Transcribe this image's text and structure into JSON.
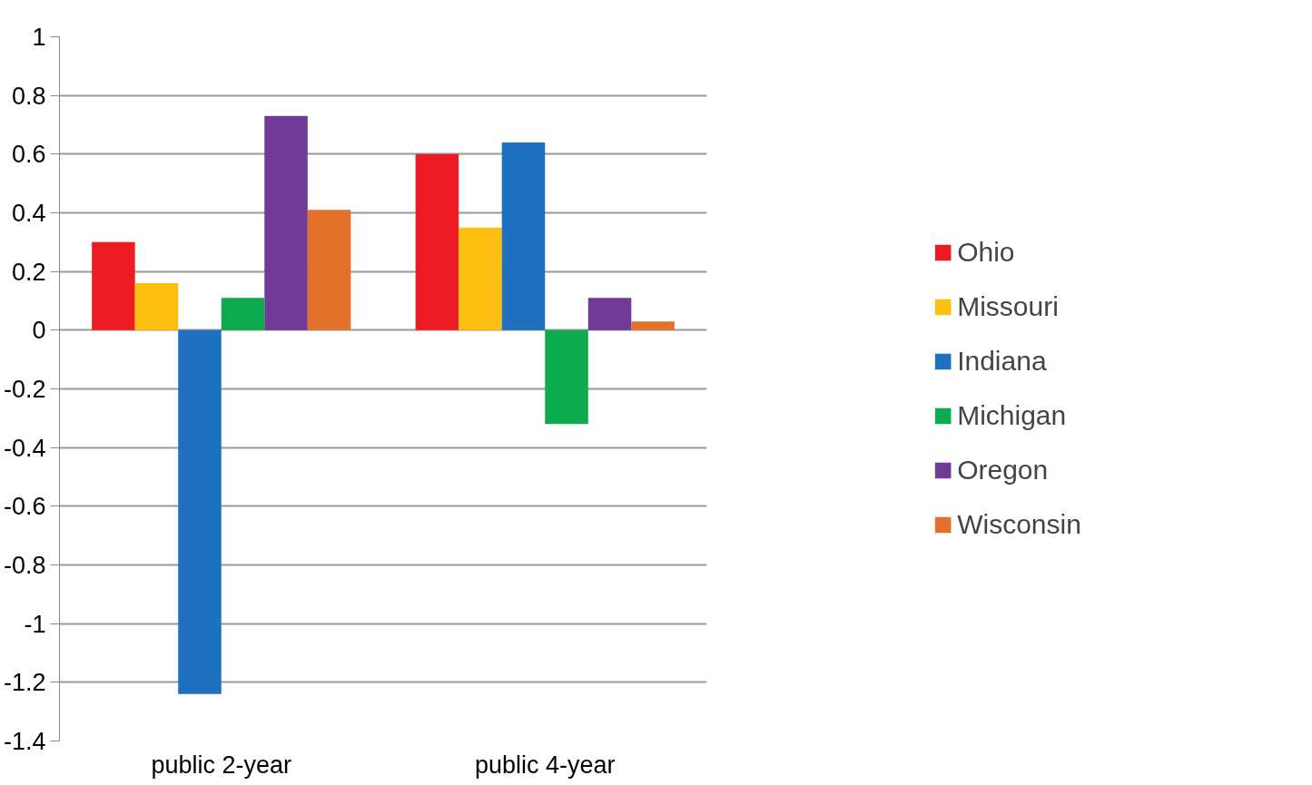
{
  "chart_data": {
    "type": "bar",
    "categories": [
      "public 2-year",
      "public 4-year"
    ],
    "series": [
      {
        "name": "Ohio",
        "color": "#ed1c24",
        "values": [
          0.3,
          0.6
        ]
      },
      {
        "name": "Missouri",
        "color": "#fdc010",
        "values": [
          0.16,
          0.35
        ]
      },
      {
        "name": "Indiana",
        "color": "#1f70bf",
        "values": [
          -1.24,
          0.64
        ]
      },
      {
        "name": "Michigan",
        "color": "#0daa4f",
        "values": [
          0.11,
          -0.32
        ]
      },
      {
        "name": "Oregon",
        "color": "#703a96",
        "values": [
          0.73,
          0.11
        ]
      },
      {
        "name": "Wisconsin",
        "color": "#e2722a",
        "values": [
          0.41,
          0.03
        ]
      }
    ],
    "ylim": [
      -1.4,
      1
    ],
    "yticks": [
      -1.4,
      -1.2,
      -1,
      -0.8,
      -0.6,
      -0.4,
      -0.2,
      0,
      0.2,
      0.4,
      0.6,
      0.8,
      1
    ],
    "grid": "y",
    "legend": "right"
  }
}
